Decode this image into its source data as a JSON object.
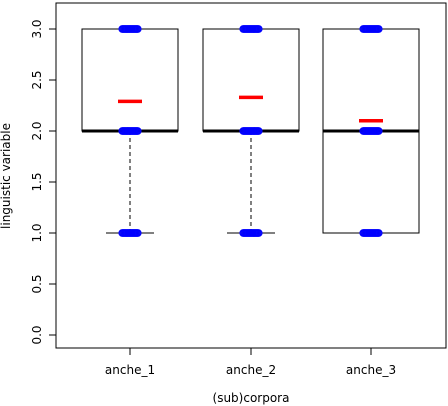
{
  "chart_data": {
    "type": "boxplot",
    "xlabel": "(sub)corpora",
    "ylabel": "linguistic variable",
    "ylim": [
      0,
      3
    ],
    "yticks": [
      "0.0",
      "0.5",
      "1.0",
      "1.5",
      "2.0",
      "2.5",
      "3.0"
    ],
    "ytick_values": [
      0,
      0.5,
      1,
      1.5,
      2,
      2.5,
      3
    ],
    "categories": [
      "anche_1",
      "anche_2",
      "anche_3"
    ],
    "boxes": [
      {
        "name": "anche_1",
        "whisker_low": 1,
        "q1": 2,
        "median": 2,
        "q3": 3,
        "whisker_high": 3,
        "mean": 2.29,
        "points": [
          1,
          2,
          3
        ]
      },
      {
        "name": "anche_2",
        "whisker_low": 1,
        "q1": 2,
        "median": 2,
        "q3": 3,
        "whisker_high": 3,
        "mean": 2.33,
        "points": [
          1,
          2,
          3
        ]
      },
      {
        "name": "anche_3",
        "whisker_low": 1,
        "q1": 1,
        "median": 2,
        "q3": 3,
        "whisker_high": 3,
        "mean": 2.1,
        "points": [
          1,
          2,
          3
        ]
      }
    ],
    "colors": {
      "points": "#0000ff",
      "mean": "#ff0000",
      "box": "#000000"
    },
    "grid": false,
    "legend": "none"
  }
}
